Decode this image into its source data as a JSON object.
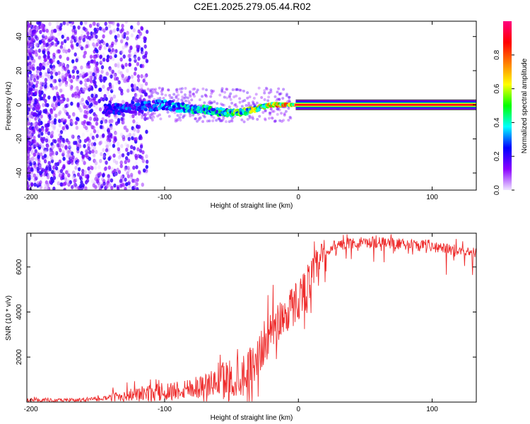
{
  "title": "C2E1.2025.279.05.44.R02",
  "chart_data": [
    {
      "id": "spectrogram",
      "type": "heatmap",
      "title": "C2E1.2025.279.05.44.R02",
      "xlabel": "Height of straight line (km)",
      "ylabel": "Frequency (Hz)",
      "xlim": [
        -203,
        133
      ],
      "ylim": [
        -50,
        49
      ],
      "xticks": [
        -200,
        -100,
        0,
        100
      ],
      "yticks": [
        -40,
        -20,
        0,
        20,
        40
      ],
      "colorbar": {
        "label": "Normalized spectral amplitude",
        "range": [
          0,
          1
        ],
        "ticks": [
          0.0,
          0.2,
          0.4,
          0.6,
          0.8
        ],
        "tick_labels": [
          "0.0",
          "0.2",
          "0.4",
          "0.6",
          "0.8"
        ],
        "colors": [
          "#f0e6ff",
          "#8a00ff",
          "#0000ff",
          "#00ffff",
          "#00ff00",
          "#ffff00",
          "#ff8000",
          "#ff0000",
          "#ff0080"
        ]
      },
      "signal_track": [
        {
          "x": -200,
          "freq": -5,
          "amp": 0.15
        },
        {
          "x": -190,
          "freq": -4,
          "amp": 0.12
        },
        {
          "x": -170,
          "freq": -5,
          "amp": 0.15
        },
        {
          "x": -145,
          "freq": -3,
          "amp": 0.25
        },
        {
          "x": -130,
          "freq": -2,
          "amp": 0.3
        },
        {
          "x": -115,
          "freq": -1,
          "amp": 0.32
        },
        {
          "x": -100,
          "freq": 0,
          "amp": 0.35
        },
        {
          "x": -85,
          "freq": -2,
          "amp": 0.4
        },
        {
          "x": -70,
          "freq": -3,
          "amp": 0.45
        },
        {
          "x": -60,
          "freq": -4,
          "amp": 0.48
        },
        {
          "x": -50,
          "freq": -5,
          "amp": 0.55
        },
        {
          "x": -40,
          "freq": -4,
          "amp": 0.6
        },
        {
          "x": -30,
          "freq": -2,
          "amp": 0.7
        },
        {
          "x": -20,
          "freq": 0,
          "amp": 0.8
        },
        {
          "x": -10,
          "freq": 0,
          "amp": 0.85
        },
        {
          "x": 0,
          "freq": 0,
          "amp": 1.0
        },
        {
          "x": 50,
          "freq": 0,
          "amp": 1.0
        },
        {
          "x": 100,
          "freq": 0,
          "amp": 1.0
        },
        {
          "x": 133,
          "freq": 0,
          "amp": 1.0
        }
      ]
    },
    {
      "id": "snr",
      "type": "line",
      "xlabel": "Height of straight line (km)",
      "ylabel": "SNR (10 * v/v)",
      "xlim": [
        -203,
        133
      ],
      "ylim": [
        0,
        7500
      ],
      "xticks": [
        -200,
        -100,
        0,
        100
      ],
      "yticks": [
        2000,
        4000,
        6000
      ],
      "series": [
        {
          "name": "SNR",
          "color": "#ee2b2b",
          "x": [
            -203,
            -190,
            -180,
            -170,
            -160,
            -150,
            -140,
            -130,
            -120,
            -110,
            -100,
            -90,
            -80,
            -70,
            -60,
            -50,
            -40,
            -35,
            -30,
            -25,
            -20,
            -15,
            -10,
            -5,
            0,
            5,
            10,
            15,
            20,
            25,
            30,
            40,
            50,
            60,
            70,
            80,
            90,
            100,
            110,
            120,
            133
          ],
          "y": [
            100,
            80,
            70,
            80,
            100,
            150,
            200,
            300,
            350,
            400,
            450,
            550,
            650,
            750,
            900,
            1000,
            1300,
            1600,
            2000,
            2700,
            3200,
            3600,
            3900,
            4200,
            4600,
            5000,
            5500,
            6000,
            6500,
            6900,
            7000,
            7050,
            7100,
            7100,
            7050,
            7000,
            6950,
            6900,
            6800,
            6750,
            6650
          ]
        }
      ]
    }
  ]
}
